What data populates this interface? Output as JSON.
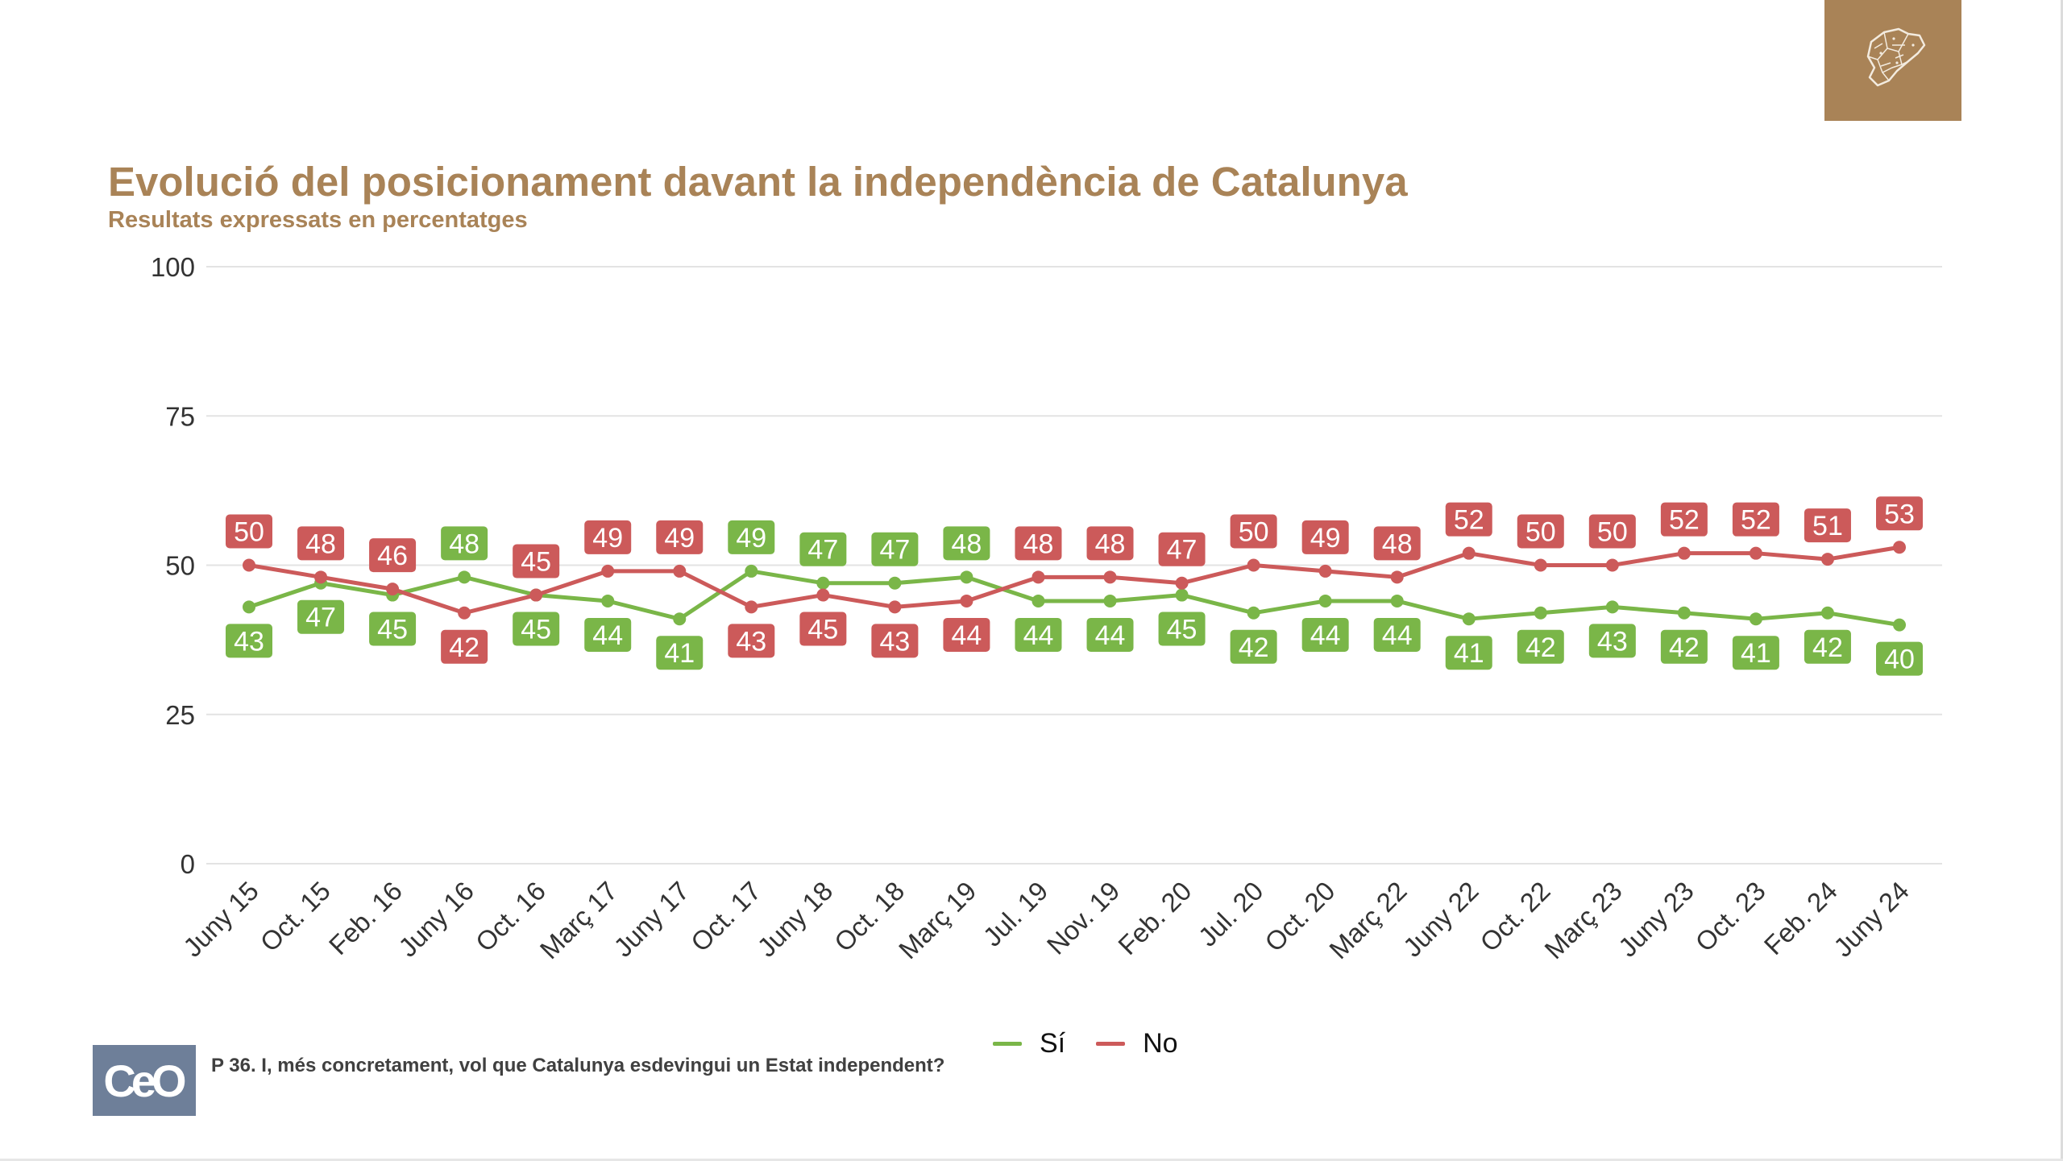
{
  "header": {
    "title": "Evolució del posicionament davant la independència de Catalunya",
    "subtitle": "Resultats expressats en percentatges",
    "badge_icon": "catalonia-map-icon",
    "badge_color": "#a98357"
  },
  "footer": {
    "logo_text": "CeO",
    "logo_color": "#6e7f99",
    "question": "P 36. I, més concretament, vol que Catalunya esdevingui un Estat independent?"
  },
  "chart_data": {
    "type": "line",
    "title": "Evolució del posicionament davant la independència de Catalunya",
    "subtitle": "Resultats expressats en percentatges",
    "xlabel": "",
    "ylabel": "",
    "ylim": [
      0,
      100
    ],
    "yticks": [
      0,
      25,
      50,
      75,
      100
    ],
    "grid": true,
    "legend": "bottom",
    "categories": [
      "Juny 15",
      "Oct. 15",
      "Feb. 16",
      "Juny 16",
      "Oct. 16",
      "Març 17",
      "Juny 17",
      "Oct. 17",
      "Juny 18",
      "Oct. 18",
      "Març 19",
      "Jul. 19",
      "Nov. 19",
      "Feb. 20",
      "Jul. 20",
      "Oct. 20",
      "Març 22",
      "Juny 22",
      "Oct. 22",
      "Març 23",
      "Juny 23",
      "Oct. 23",
      "Feb. 24",
      "Juny 24"
    ],
    "series": [
      {
        "name": "Sí",
        "color": "#7ab648",
        "values": [
          43,
          47,
          45,
          48,
          45,
          44,
          41,
          49,
          47,
          47,
          48,
          44,
          44,
          45,
          42,
          44,
          44,
          41,
          42,
          43,
          42,
          41,
          42,
          40
        ]
      },
      {
        "name": "No",
        "color": "#cc5a5a",
        "values": [
          50,
          48,
          46,
          42,
          45,
          49,
          49,
          43,
          45,
          43,
          44,
          48,
          48,
          47,
          50,
          49,
          48,
          52,
          50,
          50,
          52,
          52,
          51,
          53
        ]
      }
    ]
  }
}
